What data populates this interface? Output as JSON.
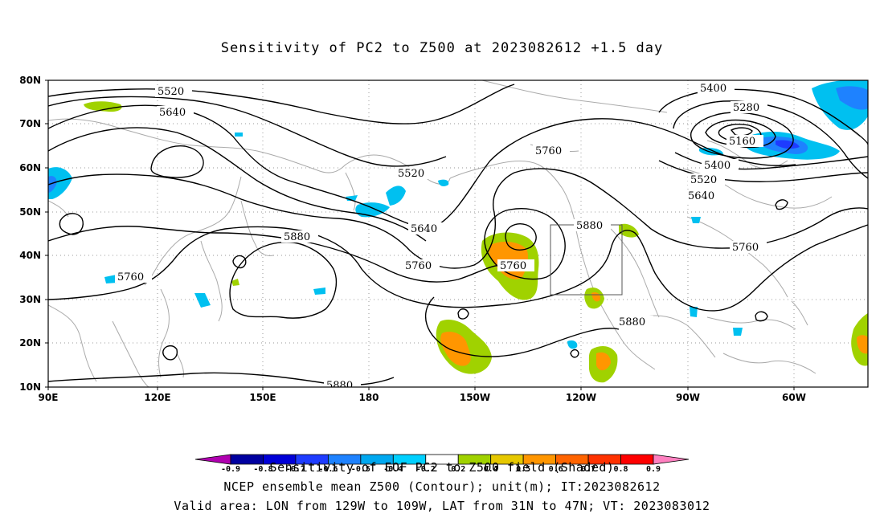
{
  "title": "Sensitivity of PC2 to Z500 at 2023082612 +1.5 day",
  "axes": {
    "lon_labels": [
      "90E",
      "120E",
      "150E",
      "180",
      "150W",
      "120W",
      "90W",
      "60W"
    ],
    "lat_labels": [
      "80N",
      "70N",
      "60N",
      "50N",
      "40N",
      "30N",
      "20N",
      "10N"
    ]
  },
  "contour_labels": {
    "c5520a": "5520",
    "c5640a": "5640",
    "c5520b": "5520",
    "c5640b": "5640",
    "c5760a": "5760",
    "c5760b": "5760",
    "c5880a": "5880",
    "c5760c": "5760",
    "c5880b": "5880",
    "c5880c": "5880",
    "c5880d": "5880",
    "c5400a": "5400",
    "c5280": "5280",
    "c5160": "5160",
    "c5400b": "5400",
    "c5520c": "5520",
    "c5640c": "5640",
    "c5760d": "5760",
    "c5760e": "5760"
  },
  "valid_area": {
    "lon_from": "129W",
    "lon_to": "109W",
    "lat_from": "31N",
    "lat_to": "47N"
  },
  "colorbar": {
    "labels": [
      "-0.9",
      "-0.8",
      "-0.7",
      "-0.6",
      "-0.5",
      "-0.4",
      "-0.2",
      "0.2",
      "0.4",
      "0.5",
      "0.6",
      "0.7",
      "0.8",
      "0.9"
    ],
    "colors": [
      "#b000b0",
      "#0000a0",
      "#0000d8",
      "#1e3cff",
      "#1e82ff",
      "#00a8f0",
      "#00d0ff",
      "#ffffff",
      "#a0d200",
      "#e6c800",
      "#ff9600",
      "#ff6400",
      "#ff3200",
      "#ff0000",
      "#ff80c0"
    ]
  },
  "colors": {
    "positive_shade": "#ff9600",
    "negative_shade": "#1e82ff",
    "coast": "#aaaaaa",
    "grid": "#999999"
  },
  "footer": {
    "line1": "Sensitivity of EOF PC2 to Z500 field (Shaded)",
    "line2": "NCEP ensemble mean Z500 (Contour); unit(m); IT:2023082612",
    "line3": "Valid area: LON from 129W to 109W, LAT from 31N to 47N; VT: 2023083012"
  }
}
